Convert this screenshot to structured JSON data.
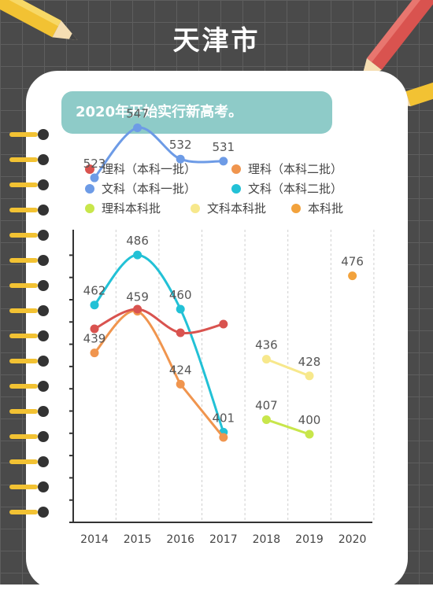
{
  "title": "天津市",
  "note": "2020年开始实行新高考。",
  "legend": [
    {
      "label": "理科（本科一批）",
      "color": "#d9534f"
    },
    {
      "label": "理科（本科二批）",
      "color": "#f0954e"
    },
    {
      "label": "文科（本科一批）",
      "color": "#6d9be6"
    },
    {
      "label": "文科（本科二批）",
      "color": "#22c1d6"
    },
    {
      "label": "理科本科批",
      "color": "#c8e64b"
    },
    {
      "label": "文科本科批",
      "color": "#f7e88c"
    },
    {
      "label": "本科批",
      "color": "#f2a23c"
    }
  ],
  "chart_data": {
    "type": "line",
    "categories": [
      "2014",
      "2015",
      "2016",
      "2017",
      "2018",
      "2019",
      "2020"
    ],
    "series": [
      {
        "name": "文科（本科一批）",
        "color": "#6d9be6",
        "values": [
          523,
          547,
          532,
          531,
          null,
          null,
          null
        ]
      },
      {
        "name": "理科（本科一批）",
        "color": "#d9534f",
        "values": [
          null,
          null,
          null,
          null,
          null,
          null,
          null
        ]
      },
      {
        "name": "文科（本科二批）",
        "color": "#22c1d6",
        "values": [
          462,
          486,
          460,
          401,
          null,
          null,
          null
        ]
      },
      {
        "name": "理科（本科二批）",
        "color": "#f0954e",
        "values": [
          439,
          459,
          424,
          null,
          null,
          null,
          null
        ]
      },
      {
        "name": "文科本科批",
        "color": "#f7e88c",
        "values": [
          null,
          null,
          null,
          null,
          436,
          428,
          null
        ]
      },
      {
        "name": "理科本科批",
        "color": "#c8e64b",
        "values": [
          null,
          null,
          null,
          null,
          407,
          400,
          null
        ]
      },
      {
        "name": "本科批",
        "color": "#f2a23c",
        "values": [
          null,
          null,
          null,
          null,
          null,
          null,
          476
        ]
      }
    ],
    "grid": true
  }
}
